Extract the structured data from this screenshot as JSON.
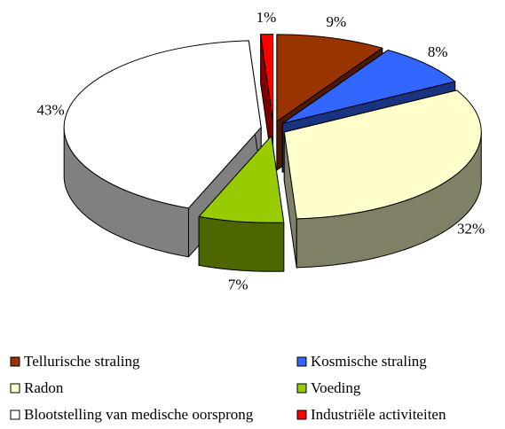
{
  "chart_data": {
    "type": "pie",
    "categories": [
      "Tellurische straling",
      "Kosmische straling",
      "Radon",
      "Voeding",
      "Blootstelling van medische oorsprong",
      "Industriële activiteiten"
    ],
    "values": [
      9,
      8,
      32,
      7,
      43,
      1
    ],
    "value_labels": [
      "9%",
      "8%",
      "32%",
      "7%",
      "43%",
      "1%"
    ],
    "colors": [
      "#993300",
      "#3366ff",
      "#ffffcc",
      "#99cc00",
      "#ffffff",
      "#ff0000"
    ],
    "legend": "bottom"
  }
}
